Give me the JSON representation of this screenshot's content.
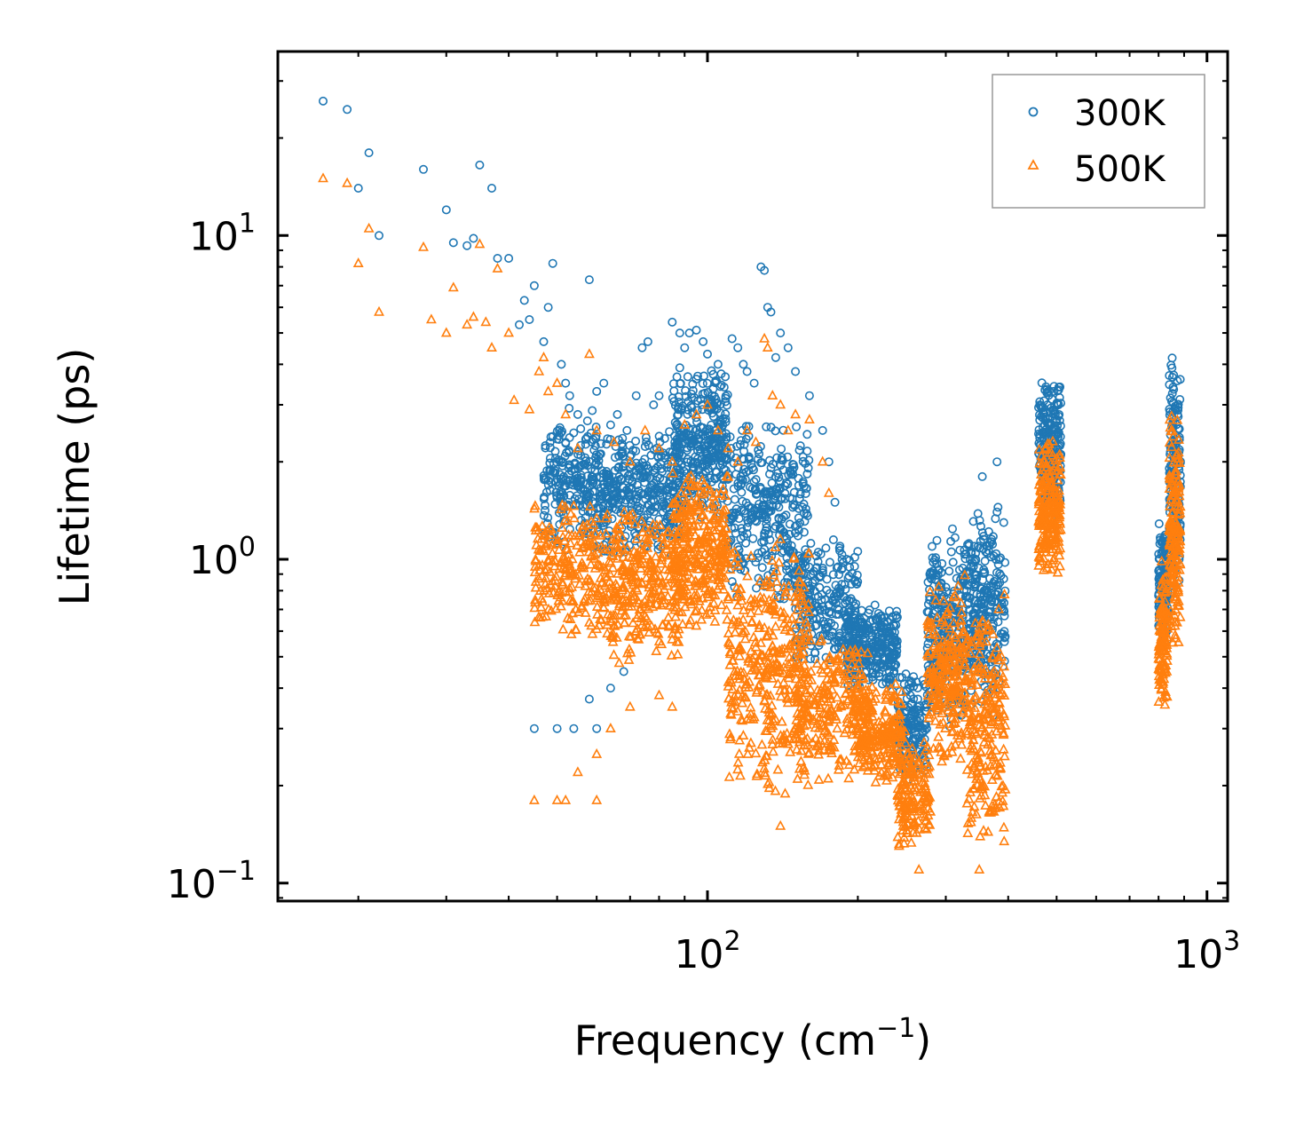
{
  "chart_data": {
    "type": "scatter",
    "xscale": "log",
    "yscale": "log",
    "xlabel": "Frequency (cm",
    "xlabel_exp": "−1",
    "xlabel_end": ")",
    "ylabel": "Lifetime (ps)",
    "xlim": [
      13.8,
      1100
    ],
    "ylim": [
      0.088,
      37
    ],
    "xticks": [
      {
        "base": "10",
        "exp": "2",
        "value": 100
      },
      {
        "base": "10",
        "exp": "3",
        "value": 1000
      }
    ],
    "yticks": [
      {
        "base": "10",
        "exp": "−1",
        "value": 0.1
      },
      {
        "base": "10",
        "exp": "0",
        "value": 1
      },
      {
        "base": "10",
        "exp": "1",
        "value": 10
      }
    ],
    "legend_position": "top-right",
    "series": [
      {
        "name": "300K",
        "marker": "circle",
        "color": "#1f77b4",
        "points": [
          [
            17,
            26
          ],
          [
            19,
            24.5
          ],
          [
            20,
            14
          ],
          [
            21,
            18
          ],
          [
            22,
            10
          ],
          [
            27,
            16
          ],
          [
            30,
            12
          ],
          [
            31,
            9.5
          ],
          [
            33,
            9.3
          ],
          [
            34,
            9.8
          ],
          [
            35,
            16.5
          ],
          [
            37,
            14
          ],
          [
            38,
            8.5
          ],
          [
            40,
            8.5
          ],
          [
            42,
            5.3
          ],
          [
            43,
            6.3
          ],
          [
            44,
            5.5
          ],
          [
            45,
            7
          ],
          [
            47,
            4.7
          ],
          [
            48,
            6
          ],
          [
            49,
            8.2
          ],
          [
            51,
            4
          ],
          [
            52,
            3.5
          ],
          [
            53,
            3.2
          ],
          [
            55,
            2.8
          ],
          [
            58,
            7.3
          ],
          [
            60,
            3.3
          ],
          [
            62,
            3.5
          ],
          [
            64,
            2.6
          ],
          [
            66,
            2.8
          ],
          [
            69,
            2.5
          ],
          [
            72,
            3.2
          ],
          [
            74,
            4.5
          ],
          [
            76,
            4.7
          ],
          [
            78,
            3.0
          ],
          [
            80,
            3.2
          ],
          [
            85,
            5.4
          ],
          [
            88,
            5.0
          ],
          [
            90,
            4.5
          ],
          [
            92,
            5.0
          ],
          [
            95,
            5.1
          ],
          [
            98,
            4.7
          ],
          [
            100,
            4.3
          ],
          [
            105,
            4.0
          ],
          [
            108,
            3.4
          ],
          [
            112,
            4.8
          ],
          [
            115,
            4.5
          ],
          [
            118,
            4.0
          ],
          [
            120,
            3.8
          ],
          [
            124,
            3.5
          ],
          [
            128,
            8.0
          ],
          [
            130,
            7.8
          ],
          [
            132,
            6.0
          ],
          [
            134,
            5.8
          ],
          [
            137,
            4.2
          ],
          [
            140,
            5.0
          ],
          [
            145,
            4.5
          ],
          [
            150,
            3.8
          ],
          [
            160,
            3.2
          ],
          [
            170,
            2.5
          ],
          [
            175,
            2.0
          ],
          [
            180,
            1.5
          ],
          [
            190,
            1.0
          ],
          [
            45,
            0.3
          ],
          [
            50,
            0.3
          ],
          [
            54,
            0.3
          ],
          [
            60,
            0.3
          ],
          [
            58,
            0.37
          ],
          [
            64,
            0.4
          ],
          [
            68,
            0.45
          ],
          [
            110,
            1.1
          ],
          [
            120,
            1.2
          ],
          [
            380,
            2.0
          ],
          [
            380,
            1.4
          ],
          [
            355,
            1.8
          ]
        ]
      },
      {
        "name": "500K",
        "marker": "triangle",
        "color": "#ff7f0e",
        "points": [
          [
            17,
            15
          ],
          [
            19,
            14.5
          ],
          [
            20,
            8.2
          ],
          [
            21,
            10.5
          ],
          [
            22,
            5.8
          ],
          [
            27,
            9.2
          ],
          [
            28,
            5.5
          ],
          [
            30,
            5.0
          ],
          [
            31,
            6.9
          ],
          [
            33,
            5.3
          ],
          [
            34,
            5.6
          ],
          [
            35,
            9.4
          ],
          [
            36,
            5.4
          ],
          [
            37,
            4.5
          ],
          [
            38,
            7.9
          ],
          [
            40,
            5.0
          ],
          [
            41,
            3.1
          ],
          [
            44,
            2.9
          ],
          [
            46,
            3.8
          ],
          [
            47,
            4.2
          ],
          [
            48,
            3.3
          ],
          [
            50,
            3.5
          ],
          [
            52,
            2.8
          ],
          [
            55,
            2.2
          ],
          [
            58,
            4.3
          ],
          [
            60,
            2.5
          ],
          [
            65,
            2.3
          ],
          [
            70,
            2.0
          ],
          [
            75,
            2.5
          ],
          [
            80,
            2.2
          ],
          [
            85,
            2.0
          ],
          [
            90,
            2.6
          ],
          [
            95,
            2.8
          ],
          [
            100,
            3.0
          ],
          [
            105,
            2.5
          ],
          [
            110,
            2.2
          ],
          [
            115,
            2.0
          ],
          [
            120,
            2.5
          ],
          [
            125,
            2.3
          ],
          [
            130,
            4.8
          ],
          [
            132,
            4.5
          ],
          [
            135,
            3.2
          ],
          [
            140,
            3.0
          ],
          [
            145,
            2.5
          ],
          [
            150,
            2.8
          ],
          [
            160,
            2.7
          ],
          [
            170,
            2.0
          ],
          [
            175,
            1.6
          ],
          [
            45,
            0.18
          ],
          [
            50,
            0.18
          ],
          [
            52,
            0.18
          ],
          [
            60,
            0.18
          ],
          [
            55,
            0.22
          ],
          [
            60,
            0.25
          ],
          [
            64,
            0.3
          ],
          [
            70,
            0.35
          ],
          [
            80,
            0.38
          ],
          [
            85,
            0.35
          ],
          [
            140,
            0.15
          ],
          [
            265,
            0.11
          ],
          [
            350,
            0.11
          ]
        ]
      }
    ],
    "clusters": [
      {
        "series": "300K",
        "fmin": 47,
        "fmax": 60,
        "lmin": 1.0,
        "lmax": 3.0,
        "n": 220
      },
      {
        "series": "300K",
        "fmin": 60,
        "fmax": 90,
        "lmin": 1.0,
        "lmax": 2.6,
        "n": 380
      },
      {
        "series": "300K",
        "fmin": 85,
        "fmax": 110,
        "lmin": 1.3,
        "lmax": 4.0,
        "n": 320
      },
      {
        "series": "300K",
        "fmin": 110,
        "fmax": 160,
        "lmin": 0.7,
        "lmax": 2.8,
        "n": 340
      },
      {
        "series": "300K",
        "fmin": 150,
        "fmax": 200,
        "lmin": 0.45,
        "lmax": 1.2,
        "n": 240
      },
      {
        "series": "300K",
        "fmin": 190,
        "fmax": 240,
        "lmin": 0.38,
        "lmax": 0.75,
        "n": 300
      },
      {
        "series": "300K",
        "fmin": 240,
        "fmax": 275,
        "lmin": 0.2,
        "lmax": 0.45,
        "n": 160
      },
      {
        "series": "300K",
        "fmin": 275,
        "fmax": 330,
        "lmin": 0.3,
        "lmax": 1.3,
        "n": 260
      },
      {
        "series": "300K",
        "fmin": 330,
        "fmax": 395,
        "lmin": 0.32,
        "lmax": 1.5,
        "n": 260
      },
      {
        "series": "300K",
        "fmin": 460,
        "fmax": 510,
        "lmin": 1.3,
        "lmax": 3.7,
        "n": 220
      },
      {
        "series": "300K",
        "fmin": 800,
        "fmax": 835,
        "lmin": 0.55,
        "lmax": 1.3,
        "n": 120
      },
      {
        "series": "300K",
        "fmin": 840,
        "fmax": 885,
        "lmin": 0.7,
        "lmax": 4.5,
        "n": 170
      },
      {
        "series": "500K",
        "fmin": 45,
        "fmax": 60,
        "lmin": 0.55,
        "lmax": 1.6,
        "n": 200
      },
      {
        "series": "500K",
        "fmin": 60,
        "fmax": 90,
        "lmin": 0.45,
        "lmax": 1.5,
        "n": 340
      },
      {
        "series": "500K",
        "fmin": 85,
        "fmax": 110,
        "lmin": 0.6,
        "lmax": 2.0,
        "n": 320
      },
      {
        "series": "500K",
        "fmin": 110,
        "fmax": 160,
        "lmin": 0.18,
        "lmax": 1.2,
        "n": 380
      },
      {
        "series": "500K",
        "fmin": 150,
        "fmax": 210,
        "lmin": 0.2,
        "lmax": 0.6,
        "n": 260
      },
      {
        "series": "500K",
        "fmin": 200,
        "fmax": 245,
        "lmin": 0.2,
        "lmax": 0.42,
        "n": 220
      },
      {
        "series": "500K",
        "fmin": 240,
        "fmax": 280,
        "lmin": 0.12,
        "lmax": 0.3,
        "n": 160
      },
      {
        "series": "500K",
        "fmin": 275,
        "fmax": 330,
        "lmin": 0.22,
        "lmax": 0.9,
        "n": 240
      },
      {
        "series": "500K",
        "fmin": 330,
        "fmax": 395,
        "lmin": 0.12,
        "lmax": 0.8,
        "n": 240
      },
      {
        "series": "500K",
        "fmin": 460,
        "fmax": 510,
        "lmin": 0.85,
        "lmax": 2.4,
        "n": 220
      },
      {
        "series": "500K",
        "fmin": 800,
        "fmax": 835,
        "lmin": 0.33,
        "lmax": 1.0,
        "n": 120
      },
      {
        "series": "500K",
        "fmin": 840,
        "fmax": 885,
        "lmin": 0.5,
        "lmax": 3.0,
        "n": 170
      }
    ]
  }
}
